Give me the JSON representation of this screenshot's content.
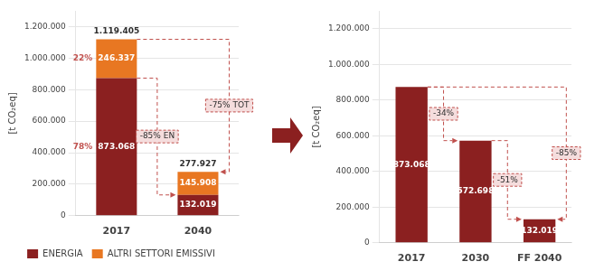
{
  "chart_data": [
    {
      "type": "bar",
      "stacked": true,
      "categories": [
        "2017",
        "2040"
      ],
      "series": [
        {
          "name": "ENERGIA",
          "color": "#8B2020",
          "values": [
            873068,
            132019
          ],
          "value_labels": [
            "873.068",
            "132.019"
          ],
          "share": {
            "value": 78,
            "label": "78%"
          }
        },
        {
          "name": "ALTRI SETTORI EMISSIVI",
          "color": "#E87722",
          "values": [
            246337,
            145908
          ],
          "value_labels": [
            "246.337",
            "145.908"
          ],
          "share": {
            "value": 22,
            "label": "22%"
          }
        }
      ],
      "totals": [
        1119405,
        277927
      ],
      "total_labels": [
        "1.119.405",
        "277.927"
      ],
      "annotations": [
        {
          "text": "-75% TOT",
          "from": {
            "category": "2017",
            "value": 1119405
          },
          "to": {
            "category": "2040",
            "value": 277927
          }
        },
        {
          "text": "-85% EN",
          "from": {
            "category": "2017",
            "value": 873068
          },
          "to": {
            "category": "2040",
            "value": 132019
          }
        }
      ],
      "ylabel": "[t CO₂eq]",
      "ylim": [
        0,
        1300000
      ],
      "yticks": [
        0,
        {
          "value": 200000,
          "label": "200.000"
        },
        {
          "value": 400000,
          "label": "400.000"
        },
        {
          "value": 600000,
          "label": "600.000"
        },
        {
          "value": 800000,
          "label": "800.000"
        },
        {
          "value": 1000000,
          "label": "1.000.000"
        },
        {
          "value": 1200000,
          "label": "1.200.000"
        }
      ],
      "grid": true,
      "data_labels": true,
      "legend": "bottom"
    },
    {
      "type": "bar",
      "categories": [
        "2017",
        "2030",
        "FF 2040"
      ],
      "series": [
        {
          "name": "ENERGIA",
          "color": "#8B2020",
          "values": [
            873068,
            572698,
            132019
          ],
          "value_labels": [
            "873.068",
            "572.698",
            "132.019"
          ]
        }
      ],
      "annotations": [
        {
          "text": "-34%",
          "from": {
            "category": "2017",
            "value": 873068
          },
          "to": {
            "category": "2030",
            "value": 572698
          }
        },
        {
          "text": "-51%",
          "from": {
            "category": "2030",
            "value": 572698
          },
          "to": {
            "category": "FF 2040",
            "value": 132019
          }
        },
        {
          "text": "-85%",
          "from": {
            "category": "2017",
            "value": 873068
          },
          "to": {
            "category": "FF 2040",
            "value": 132019
          }
        }
      ],
      "ylabel": "[t CO₂eq]",
      "ylim": [
        0,
        1300000
      ],
      "yticks": [
        0,
        {
          "value": 200000,
          "label": "200.000"
        },
        {
          "value": 400000,
          "label": "400.000"
        },
        {
          "value": 600000,
          "label": "600.000"
        },
        {
          "value": 800000,
          "label": "800.000"
        },
        {
          "value": 1000000,
          "label": "1.000.000"
        },
        {
          "value": 1200000,
          "label": "1.200.000"
        }
      ],
      "grid": true,
      "data_labels": true
    }
  ]
}
